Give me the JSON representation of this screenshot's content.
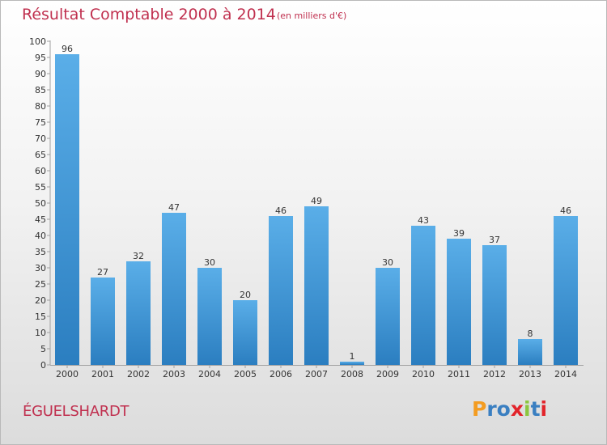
{
  "header": {
    "title": "Résultat Comptable 2000 à 2014",
    "subtitle": "(en milliers d'€)"
  },
  "footer": {
    "commune": "ÉGUELSHARDT",
    "logo_text": "Proxiti"
  },
  "colors": {
    "title": "#c0304f",
    "bar_top": "#5aaee8",
    "bar_bottom": "#2b7ec0",
    "logo_letters": [
      "#f39c21",
      "#3a7fc1",
      "#3a7fc1",
      "#e2242b",
      "#8cc63f",
      "#3a7fc1",
      "#e2242b"
    ]
  },
  "chart_data": {
    "type": "bar",
    "categories": [
      "2000",
      "2001",
      "2002",
      "2003",
      "2004",
      "2005",
      "2006",
      "2007",
      "2008",
      "2009",
      "2010",
      "2011",
      "2012",
      "2013",
      "2014"
    ],
    "values": [
      96,
      27,
      32,
      47,
      30,
      20,
      46,
      49,
      1,
      30,
      43,
      39,
      37,
      8,
      46
    ],
    "ylim": [
      0,
      100
    ],
    "yticks": [
      0,
      5,
      10,
      15,
      20,
      25,
      30,
      35,
      40,
      45,
      50,
      55,
      60,
      65,
      70,
      75,
      80,
      85,
      90,
      95,
      100
    ],
    "grid": false,
    "data_labels": true
  }
}
